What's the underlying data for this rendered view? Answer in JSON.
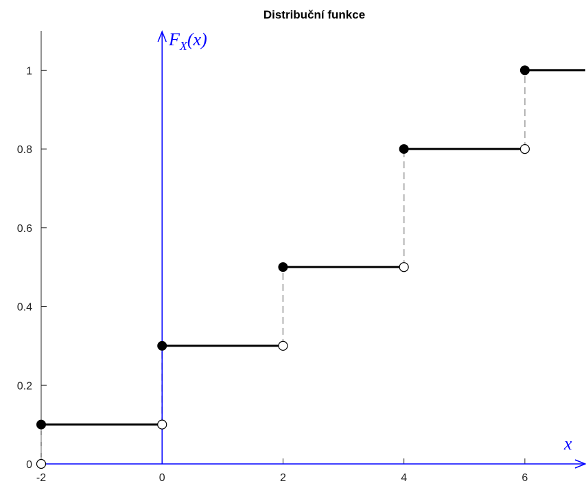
{
  "chart_data": {
    "type": "line",
    "title": "Distribuční funkce",
    "xlabel": "x",
    "ylabel_main": "F",
    "ylabel_sub": "X",
    "ylabel_arg": "(x)",
    "xlim": [
      -2,
      7
    ],
    "ylim": [
      0,
      1.1
    ],
    "x_ticks": [
      {
        "value": -2,
        "label": "-2"
      },
      {
        "value": 0,
        "label": "0"
      },
      {
        "value": 2,
        "label": "2"
      },
      {
        "value": 4,
        "label": "4"
      },
      {
        "value": 6,
        "label": "6"
      }
    ],
    "y_ticks": [
      {
        "value": 0,
        "label": "0"
      },
      {
        "value": 0.2,
        "label": "0.2"
      },
      {
        "value": 0.4,
        "label": "0.4"
      },
      {
        "value": 0.6,
        "label": "0.6"
      },
      {
        "value": 0.8,
        "label": "0.8"
      },
      {
        "value": 1,
        "label": "1"
      }
    ],
    "steps": [
      {
        "x_start": -2,
        "x_end": 0,
        "y": 0.1
      },
      {
        "x_start": 0,
        "x_end": 2,
        "y": 0.3
      },
      {
        "x_start": 2,
        "x_end": 4,
        "y": 0.5
      },
      {
        "x_start": 4,
        "x_end": 6,
        "y": 0.8
      },
      {
        "x_start": 6,
        "x_end": 7,
        "y": 1.0
      }
    ],
    "jumps": [
      {
        "x": -2,
        "from": 0,
        "to": 0.1
      },
      {
        "x": 0,
        "from": 0.1,
        "to": 0.3
      },
      {
        "x": 2,
        "from": 0.3,
        "to": 0.5
      },
      {
        "x": 4,
        "from": 0.5,
        "to": 0.8
      },
      {
        "x": 6,
        "from": 0.8,
        "to": 1.0
      }
    ],
    "colors": {
      "step": "#000000",
      "axis": "#0000ff",
      "dashed": "#b3b3b3",
      "box": "#262626"
    }
  }
}
